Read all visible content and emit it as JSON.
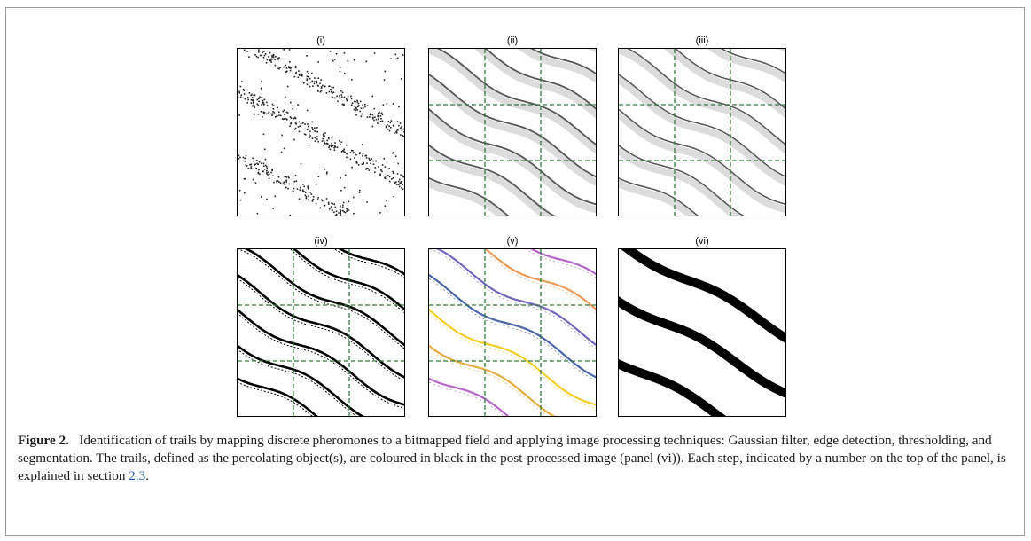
{
  "figure": {
    "panels": [
      {
        "id": "p1",
        "label": "(i)"
      },
      {
        "id": "p2",
        "label": "(ii)"
      },
      {
        "id": "p3",
        "label": "(iii)"
      },
      {
        "id": "p4",
        "label": "(iv)"
      },
      {
        "id": "p5",
        "label": "(v)"
      },
      {
        "id": "p6",
        "label": "(vi)"
      }
    ],
    "caption": {
      "label": "Figure 2.",
      "text": "Identification of trails by mapping discrete pheromones to a bitmapped field and applying image processing techniques: Gaussian filter, edge detection, thresholding, and segmentation. The trails, defined as the percolating object(s), are coloured in black in the post-processed image (panel (vi)). Each step, indicated by a number on the top of the panel, is explained in section",
      "ref": "2.3",
      "end": "."
    },
    "colors": {
      "grid": "#2e7d3a",
      "trail": "#000000",
      "segments": [
        "#f2c500",
        "#e0a020",
        "#a94cc0",
        "#e8893a",
        "#5a4bb0",
        "#2a4a9a"
      ]
    }
  }
}
